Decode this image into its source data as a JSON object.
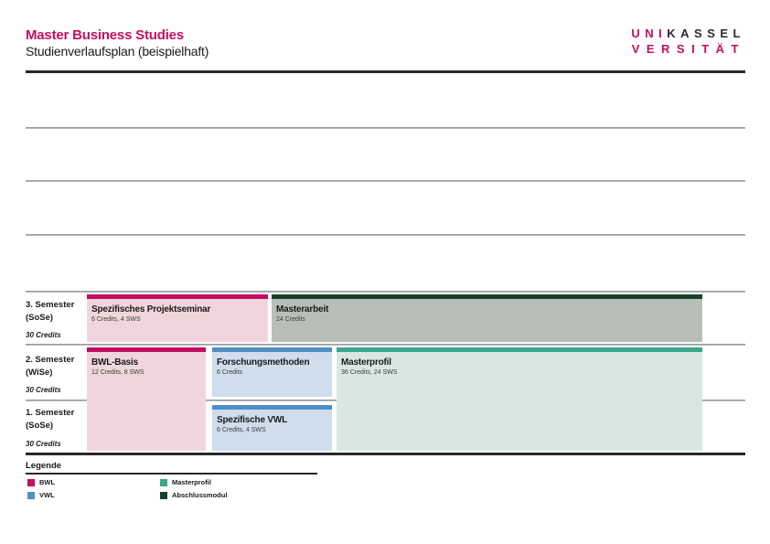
{
  "header": {
    "title": "Master Business Studies",
    "subtitle": "Studienverlaufsplan (beispielhaft)",
    "logo": {
      "uni": "UNI",
      "kassel": "KASSEL",
      "versitaet": "VERSITÄT"
    }
  },
  "plan": {
    "semesters": [
      {
        "label": "3. Semester",
        "term": "(SoSe)",
        "credits_total": "30 Credits"
      },
      {
        "label": "2. Semester",
        "term": "(WiSe)",
        "credits_total": "30 Credits"
      },
      {
        "label": "1. Semester",
        "term": "(SoSe)",
        "credits_total": "30 Credits"
      }
    ],
    "modules": [
      {
        "title": "Spezifisches Projektseminar",
        "details": "6 Credits, 4 SWS",
        "category": "BWL"
      },
      {
        "title": "Masterarbeit",
        "details": "24 Credits",
        "category": "Abschlussmodul"
      },
      {
        "title": "BWL-Basis",
        "details": "12 Credits, 8 SWS",
        "category": "BWL"
      },
      {
        "title": "Forschungsmethoden",
        "details": "6 Credits",
        "category": "VWL"
      },
      {
        "title": "Masterprofil",
        "details": "36 Credits, 24 SWS",
        "category": "Masterprofil"
      },
      {
        "title": "Spezifische VWL",
        "details": "6 Credits, 4 SWS",
        "category": "VWL"
      }
    ]
  },
  "legend": {
    "heading": "Legende",
    "items": [
      {
        "label": "BWL",
        "color": "#c40e61"
      },
      {
        "label": "VWL",
        "color": "#4e8fc6"
      },
      {
        "label": "Masterprofil",
        "color": "#3aa78e"
      },
      {
        "label": "Abschlussmodul",
        "color": "#16422a"
      }
    ]
  },
  "colors": {
    "accent_magenta": "#c40e61",
    "bwl_fill": "#f0d6dc",
    "vwl_bar": "#4e8fc6",
    "vwl_fill": "#cfdded",
    "masterprofil_bar": "#3aa78e",
    "masterprofil_fill": "#d8e8e1",
    "abschlussmodul_bar": "#16422a",
    "abschlussmodul_fill": "#b9bfb8"
  }
}
